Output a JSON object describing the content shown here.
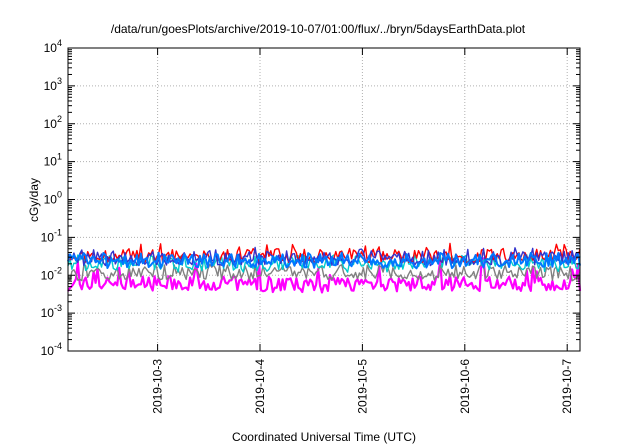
{
  "chart_data": {
    "type": "line",
    "title": "/data/run/goesPlots/archive/2019-10-07/01:00/flux/../bryn/5daysEarthData.plot",
    "xlabel": "Coordinated Universal Time (UTC)",
    "ylabel": "cGy/day",
    "x_range": [
      "2019-10-02T03:00",
      "2019-10-07T03:00"
    ],
    "xticks": [
      {
        "label": "2019-10-3",
        "date": "2019-10-03"
      },
      {
        "label": "2019-10-4",
        "date": "2019-10-04"
      },
      {
        "label": "2019-10-5",
        "date": "2019-10-05"
      },
      {
        "label": "2019-10-6",
        "date": "2019-10-06"
      },
      {
        "label": "2019-10-7",
        "date": "2019-10-07"
      }
    ],
    "y_scale": "log",
    "ylim": [
      0.0001,
      10000
    ],
    "yticks": [
      {
        "base": "10",
        "exp": "-4",
        "value": 0.0001
      },
      {
        "base": "10",
        "exp": "-3",
        "value": 0.001
      },
      {
        "base": "10",
        "exp": "-2",
        "value": 0.01
      },
      {
        "base": "10",
        "exp": "-1",
        "value": 0.1
      },
      {
        "base": "10",
        "exp": "0",
        "value": 1
      },
      {
        "base": "10",
        "exp": "1",
        "value": 10
      },
      {
        "base": "10",
        "exp": "2",
        "value": 100
      },
      {
        "base": "10",
        "exp": "3",
        "value": 1000
      },
      {
        "base": "10",
        "exp": "4",
        "value": 10000
      }
    ],
    "grid": true,
    "legend": "none",
    "series": [
      {
        "color": "#ff0000",
        "typical": 0.033,
        "min": 0.022,
        "max": 0.07
      },
      {
        "color": "#3333cc",
        "typical": 0.028,
        "min": 0.018,
        "max": 0.055
      },
      {
        "color": "#00cccc",
        "typical": 0.022,
        "min": 0.012,
        "max": 0.035
      },
      {
        "color": "#808080",
        "typical": 0.012,
        "min": 0.007,
        "max": 0.02
      },
      {
        "color": "#ff00ff",
        "typical": 0.006,
        "min": 0.0035,
        "max": 0.03
      },
      {
        "color": "#0077ff",
        "typical": 0.025,
        "min": 0.015,
        "max": 0.04
      }
    ]
  }
}
